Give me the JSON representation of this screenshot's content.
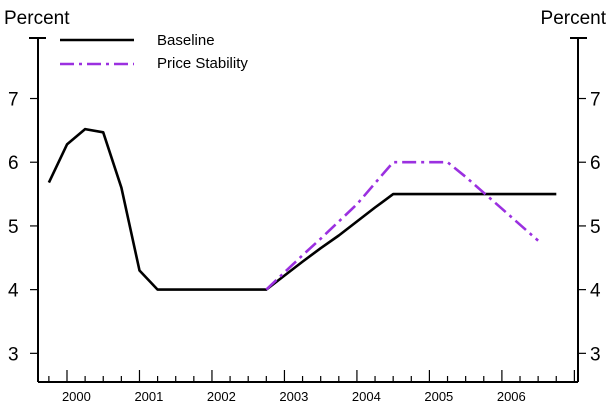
{
  "chart_data": {
    "type": "line",
    "title": "",
    "left_unit_label": "Percent",
    "right_unit_label": "Percent",
    "xlabel": "",
    "ylabel": "Percent",
    "ylim": [
      2.55,
      7.95
    ],
    "xlim": [
      1999.6,
      2007.05
    ],
    "y_ticks": [
      3,
      4,
      5,
      6,
      7
    ],
    "y_tick_labels": [
      "3",
      "4",
      "5",
      "6",
      "7"
    ],
    "x_tick_labels": [
      "2000",
      "2001",
      "2002",
      "2003",
      "2004",
      "2005",
      "2006"
    ],
    "x_label_centers": [
      2000.13,
      2001.13,
      2002.13,
      2003.13,
      2004.13,
      2005.13,
      2006.13
    ],
    "grid": false,
    "legend_position": "top-left",
    "series": [
      {
        "name": "Baseline",
        "color": "#000000",
        "style": "solid",
        "points": [
          [
            1999.75,
            5.68
          ],
          [
            2000.0,
            6.28
          ],
          [
            2000.25,
            6.52
          ],
          [
            2000.5,
            6.47
          ],
          [
            2000.75,
            5.6
          ],
          [
            2001.0,
            4.3
          ],
          [
            2001.25,
            4.0
          ],
          [
            2001.5,
            4.0
          ],
          [
            2001.75,
            4.0
          ],
          [
            2002.0,
            4.0
          ],
          [
            2002.25,
            4.0
          ],
          [
            2002.5,
            4.0
          ],
          [
            2002.75,
            4.0
          ],
          [
            2003.0,
            4.22
          ],
          [
            2003.25,
            4.44
          ],
          [
            2003.5,
            4.65
          ],
          [
            2003.75,
            4.85
          ],
          [
            2004.0,
            5.07
          ],
          [
            2004.25,
            5.29
          ],
          [
            2004.5,
            5.5
          ],
          [
            2004.75,
            5.5
          ],
          [
            2005.0,
            5.5
          ],
          [
            2005.25,
            5.5
          ],
          [
            2005.5,
            5.5
          ],
          [
            2005.75,
            5.5
          ],
          [
            2006.0,
            5.5
          ],
          [
            2006.25,
            5.5
          ],
          [
            2006.5,
            5.5
          ],
          [
            2006.75,
            5.5
          ]
        ]
      },
      {
        "name": "Price Stability",
        "color": "#9b30e0",
        "style": "dash-dot",
        "points": [
          [
            2002.75,
            4.0
          ],
          [
            2003.0,
            4.27
          ],
          [
            2003.25,
            4.54
          ],
          [
            2003.5,
            4.8
          ],
          [
            2003.75,
            5.07
          ],
          [
            2004.0,
            5.34
          ],
          [
            2004.25,
            5.67
          ],
          [
            2004.5,
            6.0
          ],
          [
            2004.75,
            6.0
          ],
          [
            2005.0,
            6.0
          ],
          [
            2005.25,
            6.0
          ],
          [
            2005.5,
            5.77
          ],
          [
            2005.75,
            5.52
          ],
          [
            2006.0,
            5.27
          ],
          [
            2006.25,
            5.02
          ],
          [
            2006.5,
            4.77
          ]
        ]
      }
    ]
  }
}
